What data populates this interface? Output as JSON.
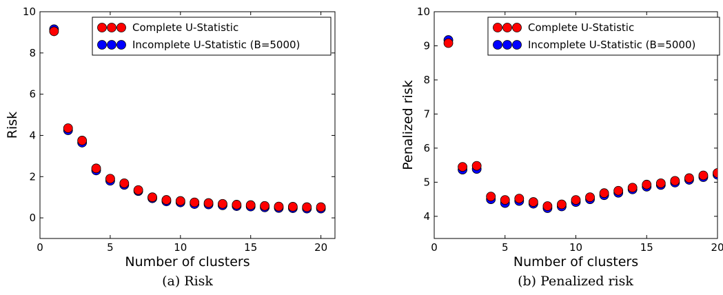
{
  "chart_data": [
    {
      "type": "scatter",
      "title": "",
      "caption": "(a) Risk",
      "xlabel": "Number of clusters",
      "ylabel": "Risk",
      "xlim": [
        0,
        21
      ],
      "ylim": [
        -1,
        10
      ],
      "xticks": [
        0,
        5,
        10,
        15,
        20
      ],
      "yticks": [
        0,
        2,
        4,
        6,
        8,
        10
      ],
      "grid": false,
      "legend": "top-right",
      "x": [
        1,
        2,
        3,
        4,
        5,
        6,
        7,
        8,
        9,
        10,
        11,
        12,
        13,
        14,
        15,
        16,
        17,
        18,
        19,
        20
      ],
      "series": [
        {
          "name": "Incomplete U-Statistic (B=5000)",
          "color": "#0000ff",
          "values": [
            9.2,
            4.3,
            3.7,
            2.35,
            1.85,
            1.65,
            1.35,
            1.0,
            0.85,
            0.8,
            0.72,
            0.7,
            0.66,
            0.62,
            0.6,
            0.56,
            0.53,
            0.52,
            0.5,
            0.5
          ]
        },
        {
          "name": "Complete U-Statistic",
          "color": "#ff0000",
          "values": [
            9.05,
            4.35,
            3.75,
            2.4,
            1.9,
            1.68,
            1.35,
            1.0,
            0.87,
            0.82,
            0.75,
            0.72,
            0.68,
            0.64,
            0.62,
            0.58,
            0.55,
            0.54,
            0.52,
            0.52
          ]
        }
      ]
    },
    {
      "type": "scatter",
      "title": "",
      "caption": "(b) Penalized risk",
      "xlabel": "Number of clusters",
      "ylabel": "Penalized risk",
      "xlim": [
        0,
        20
      ],
      "ylim": [
        3.35,
        10
      ],
      "xticks": [
        0,
        5,
        10,
        15,
        20
      ],
      "yticks": [
        4,
        5,
        6,
        7,
        8,
        9,
        10
      ],
      "grid": false,
      "legend": "top-right",
      "x": [
        1,
        2,
        3,
        4,
        5,
        6,
        7,
        8,
        9,
        10,
        11,
        12,
        13,
        14,
        15,
        16,
        17,
        18,
        19,
        20
      ],
      "series": [
        {
          "name": "Incomplete U-Statistic (B=5000)",
          "color": "#0000ff",
          "values": [
            9.2,
            5.4,
            5.42,
            4.53,
            4.42,
            4.48,
            4.4,
            4.27,
            4.32,
            4.45,
            4.53,
            4.65,
            4.72,
            4.82,
            4.9,
            4.95,
            5.02,
            5.1,
            5.18,
            5.25
          ]
        },
        {
          "name": "Complete U-Statistic",
          "color": "#ff0000",
          "values": [
            9.08,
            5.45,
            5.48,
            4.58,
            4.48,
            4.52,
            4.42,
            4.3,
            4.35,
            4.48,
            4.56,
            4.68,
            4.75,
            4.84,
            4.93,
            4.97,
            5.04,
            5.12,
            5.2,
            5.27
          ]
        }
      ]
    }
  ]
}
